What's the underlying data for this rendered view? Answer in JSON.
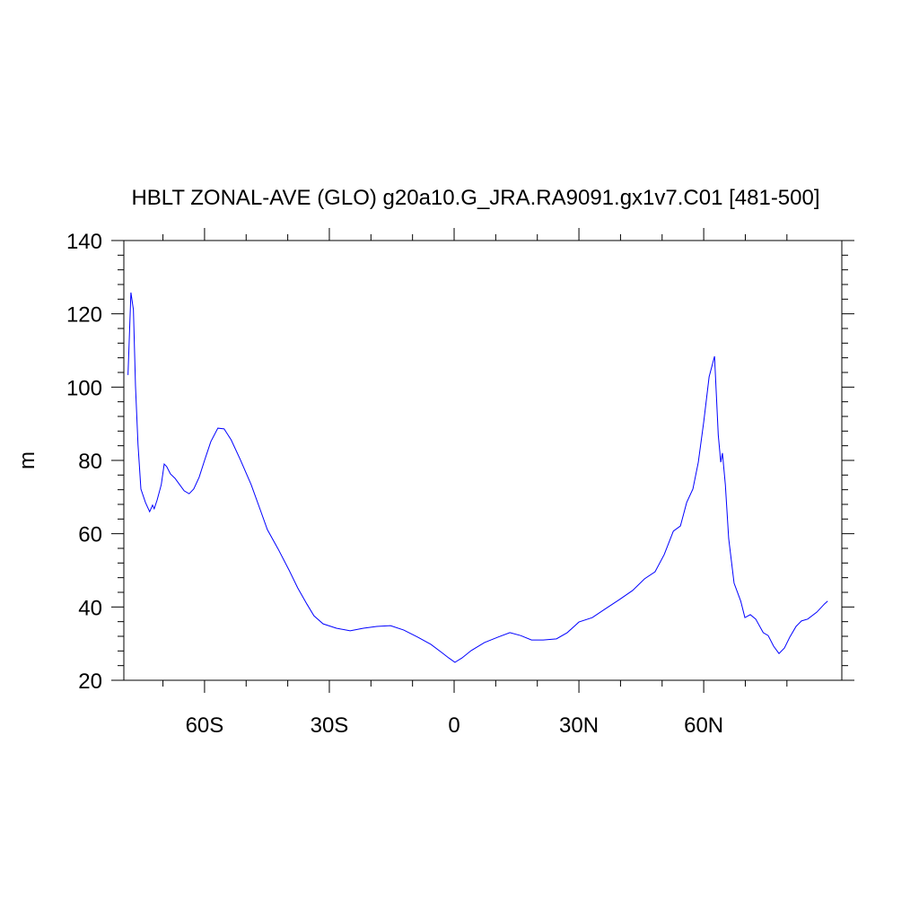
{
  "chart_data": {
    "type": "line",
    "title": "HBLT ZONAL-AVE (GLO) g20a10.G_JRA.RA9091.gx1v7.C01 [481-500]",
    "y_label": "m",
    "xlim": [
      -79.4,
      93.2
    ],
    "ylim": [
      20,
      140
    ],
    "xticks": [
      {
        "value": -60,
        "label": "60S"
      },
      {
        "value": -30,
        "label": "30S"
      },
      {
        "value": 0,
        "label": "0"
      },
      {
        "value": 30,
        "label": "30N"
      },
      {
        "value": 60,
        "label": "60N"
      }
    ],
    "xminorticks": [
      -70,
      -50,
      -40,
      -20,
      -10,
      10,
      20,
      40,
      50,
      70,
      80
    ],
    "yticks": [
      20,
      40,
      60,
      80,
      100,
      120,
      140
    ],
    "yminorticks": [
      24,
      28,
      32,
      36,
      44,
      48,
      52,
      56,
      64,
      68,
      72,
      76,
      84,
      88,
      92,
      96,
      104,
      108,
      112,
      116,
      124,
      128,
      132,
      136
    ],
    "x": [
      -78.4,
      -77.7,
      -77.1,
      -76.6,
      -76.0,
      -75.3,
      -74.2,
      -73.2,
      -72.5,
      -72.1,
      -71.4,
      -70.4,
      -69.7,
      -69.1,
      -68.2,
      -67.1,
      -66.0,
      -64.9,
      -63.7,
      -62.6,
      -61.3,
      -60.0,
      -58.5,
      -56.8,
      -55.3,
      -53.6,
      -51.4,
      -48.8,
      -46.6,
      -44.9,
      -42.3,
      -39.7,
      -37.6,
      -35.4,
      -33.7,
      -31.5,
      -28.3,
      -25.0,
      -21.8,
      -18.6,
      -15.3,
      -12.1,
      -8.8,
      -5.6,
      -3.0,
      -1.3,
      0.2,
      1.9,
      4.1,
      7.3,
      10.6,
      13.4,
      16.0,
      18.6,
      21.4,
      24.6,
      27.2,
      30.0,
      33.2,
      36.5,
      39.7,
      42.9,
      45.8,
      48.3,
      50.5,
      52.7,
      54.4,
      55.9,
      57.4,
      58.7,
      60.0,
      61.3,
      62.6,
      63.5,
      64.1,
      64.5,
      65.2,
      66.0,
      67.3,
      68.9,
      69.9,
      71.2,
      72.5,
      74.3,
      75.5,
      76.8,
      78.1,
      79.4,
      80.7,
      82.2,
      83.5,
      85.0,
      87.2,
      89.0,
      89.8
    ],
    "series": [
      {
        "color": "#0000ff",
        "values": [
          103.3,
          125.8,
          121.1,
          100.3,
          84.4,
          72.2,
          68.5,
          66.0,
          67.8,
          66.8,
          69.2,
          73.4,
          79.0,
          78.3,
          76.3,
          75.1,
          73.4,
          71.7,
          70.9,
          72.2,
          75.4,
          80.0,
          85.1,
          88.8,
          88.6,
          85.6,
          80.2,
          73.4,
          66.5,
          61.1,
          55.8,
          50.1,
          45.2,
          40.8,
          37.6,
          35.4,
          34.2,
          33.5,
          34.2,
          34.7,
          34.9,
          33.7,
          31.8,
          29.8,
          27.6,
          26.1,
          24.9,
          26.1,
          28.1,
          30.3,
          31.8,
          33.0,
          32.2,
          31.0,
          31.0,
          31.3,
          33.0,
          35.9,
          37.1,
          39.6,
          42.0,
          44.5,
          47.7,
          49.6,
          54.3,
          60.7,
          62.1,
          68.5,
          72.2,
          79.5,
          90.5,
          102.8,
          108.4,
          86.9,
          79.5,
          82.0,
          73.4,
          58.7,
          46.5,
          41.6,
          37.1,
          37.9,
          36.7,
          33.0,
          32.2,
          29.3,
          27.3,
          28.8,
          31.8,
          34.7,
          36.2,
          36.7,
          38.6,
          40.8,
          41.6
        ]
      }
    ]
  }
}
